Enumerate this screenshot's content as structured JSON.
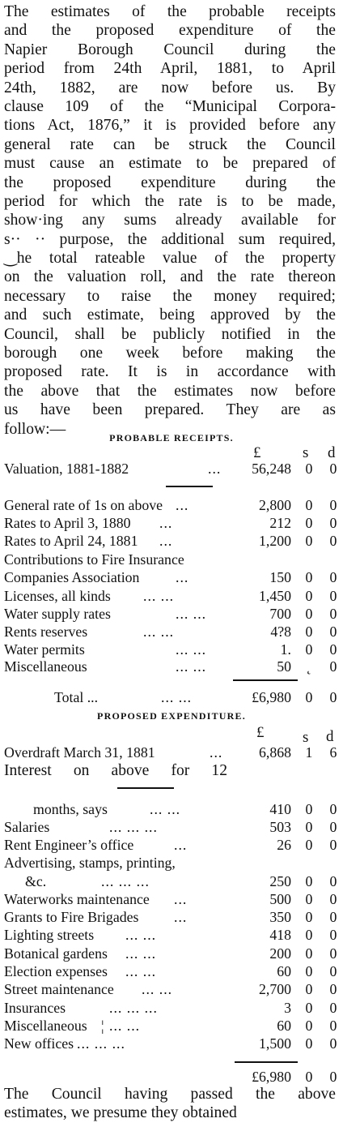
{
  "intro_lines": [
    "The estimates of the probable receipts",
    "and the proposed expenditure of the",
    "Napier Borough Council during the",
    "period from 24th April, 1881, to April",
    "24th, 1882, are now before us. By",
    "clause 109 of the “Municipal Corpora-",
    "tions Act, 1876,” it is provided before any",
    "general rate can be struck the Council",
    "must cause an estimate to be prepared of",
    "the proposed expenditure during the",
    "period for which the rate is to be made,",
    "show·ing any sums already available for",
    "s·· ·· purpose, the additional sum required,",
    "‿he total rateable value of the property",
    "on the valuation roll, and the rate thereon",
    "necessary to raise the money required;",
    "and such estimate, being approved by the",
    "Council, shall be publicly notified in the",
    "borough one week before making the",
    "proposed rate. It is in accordance with",
    "the above that the estimates now before",
    "us have been prepared. They are as",
    "follow:—"
  ],
  "receipts": {
    "heading": "PROBABLE RECEIPTS.",
    "col_pounds": "£",
    "col_shillings": "s",
    "col_pence": "d",
    "valuation": {
      "label": "Valuation, 1881-1882",
      "dots": "...",
      "pounds": "56,248",
      "s": "0",
      "d": "0"
    },
    "items": [
      {
        "label": "General rate of 1s on above",
        "dots": "...",
        "pounds": "2,800",
        "s": "0",
        "d": "0"
      },
      {
        "label": "Rates to April 3, 1880",
        "dots": "...",
        "pounds": "212",
        "s": "0",
        "d": "0"
      },
      {
        "label": "Rates to April 24, 1881",
        "dots": "...",
        "pounds": "1,200",
        "s": "0",
        "d": "0"
      },
      {
        "label": "Contributions to Fire Insurance",
        "dots": "",
        "pounds": "",
        "s": "",
        "d": ""
      },
      {
        "label": "Companies Association",
        "dots": "...",
        "pounds": "150",
        "s": "0",
        "d": "0"
      },
      {
        "label": "Licenses, all kinds",
        "dots": "... ...",
        "pounds": "1,450",
        "s": "0",
        "d": "0"
      },
      {
        "label": "Water supply rates",
        "dots": "... ...",
        "pounds": "700",
        "s": "0",
        "d": "0"
      },
      {
        "label": "Rents reserves",
        "dots": "... ...",
        "pounds": "4?8",
        "s": "0",
        "d": "0"
      },
      {
        "label": "Water permits",
        "dots": "... ...",
        "pounds": "1.",
        "s": "0",
        "d": "0"
      },
      {
        "label": "Miscellaneous",
        "dots": "... ...",
        "pounds": "50",
        "s": "˛",
        "d": "0"
      }
    ],
    "total": {
      "label": "Total ...",
      "dots": "... ...",
      "pounds": "£6,980",
      "s": "0",
      "d": "0"
    }
  },
  "expenditure": {
    "heading": "PROPOSED EXPENDITURE.",
    "col_pounds": "£",
    "col_shillings": "s",
    "col_pence": "d",
    "overdraft": {
      "label": "Overdraft March 31, 1881",
      "dots": "...",
      "pounds": "6,868",
      "s": "1",
      "d": "6"
    },
    "interest_line": "Interest on above for 12",
    "items": [
      {
        "label": "months, says",
        "dots": "... ...",
        "pounds": "410",
        "s": "0",
        "d": "0",
        "indent": true
      },
      {
        "label": "Salaries",
        "dots": "... ... ...",
        "pounds": "503",
        "s": "0",
        "d": "0"
      },
      {
        "label": "Rent Engineer’s office",
        "dots": "...",
        "pounds": "26",
        "s": "0",
        "d": "0"
      },
      {
        "label": "Advertising, stamps, printing,",
        "dots": "",
        "pounds": "",
        "s": "",
        "d": ""
      },
      {
        "label": "&c.",
        "dots": "... ... ...",
        "pounds": "250",
        "s": "0",
        "d": "0",
        "indent": true
      },
      {
        "label": "Waterworks maintenance",
        "dots": "...",
        "pounds": "500",
        "s": "0",
        "d": "0"
      },
      {
        "label": "Grants to Fire Brigades",
        "dots": "...",
        "pounds": "350",
        "s": "0",
        "d": "0"
      },
      {
        "label": "Lighting streets",
        "dots": "... ...",
        "pounds": "418",
        "s": "0",
        "d": "0"
      },
      {
        "label": "Botanical gardens",
        "dots": "... ...",
        "pounds": "200",
        "s": "0",
        "d": "0"
      },
      {
        "label": "Election expenses",
        "dots": "... ...",
        "pounds": "60",
        "s": "0",
        "d": "0"
      },
      {
        "label": "Street maintenance",
        "dots": "... ...",
        "pounds": "2,700",
        "s": "0",
        "d": "0"
      },
      {
        "label": "Insurances",
        "dots": "... ... ...",
        "pounds": "3",
        "s": "0",
        "d": "0"
      },
      {
        "label": "Miscellaneous",
        "dots": "¦ ... ...",
        "pounds": "60",
        "s": "0",
        "d": "0"
      },
      {
        "label": "New offices",
        "dots": "... ... ...",
        "pounds": "1,500",
        "s": "0",
        "d": "0"
      }
    ],
    "total": {
      "pounds": "£6,980",
      "s": "0",
      "d": "0"
    }
  },
  "closing_lines": [
    "The Council having passed the above",
    "estimates, we presume they obtained"
  ]
}
